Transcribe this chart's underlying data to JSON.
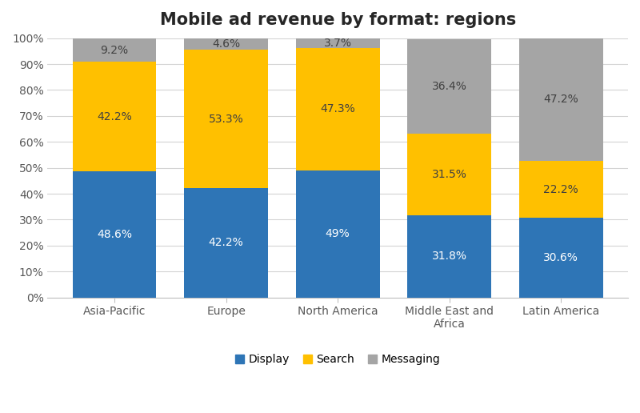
{
  "title": "Mobile ad revenue by format: regions",
  "categories": [
    "Asia-Pacific",
    "Europe",
    "North America",
    "Middle East and\nAfrica",
    "Latin America"
  ],
  "display": [
    48.6,
    42.2,
    49.0,
    31.8,
    30.6
  ],
  "display_labels": [
    "48.6%",
    "42.2%",
    "49%",
    "31.8%",
    "30.6%"
  ],
  "search": [
    42.2,
    53.3,
    47.3,
    31.5,
    22.2
  ],
  "search_labels": [
    "42.2%",
    "53.3%",
    "47.3%",
    "31.5%",
    "22.2%"
  ],
  "messaging": [
    9.2,
    4.6,
    3.7,
    36.4,
    47.2
  ],
  "messaging_labels": [
    "9.2%",
    "4.6%",
    "3.7%",
    "36.4%",
    "47.2%"
  ],
  "display_color": "#2E75B6",
  "search_color": "#FFC000",
  "messaging_color": "#A5A5A5",
  "display_label": "Display",
  "search_label": "Search",
  "messaging_label": "Messaging",
  "ylim": [
    0,
    100
  ],
  "ytick_labels": [
    "0%",
    "10%",
    "20%",
    "30%",
    "40%",
    "50%",
    "60%",
    "70%",
    "80%",
    "90%",
    "100%"
  ],
  "ytick_values": [
    0,
    10,
    20,
    30,
    40,
    50,
    60,
    70,
    80,
    90,
    100
  ],
  "bar_width": 0.75,
  "title_fontsize": 15,
  "label_fontsize": 10,
  "legend_fontsize": 10,
  "tick_fontsize": 10,
  "background_color": "#FFFFFF",
  "grid_color": "#D3D3D3",
  "text_color_dark": "#404040",
  "text_color_light": "#FFFFFF"
}
